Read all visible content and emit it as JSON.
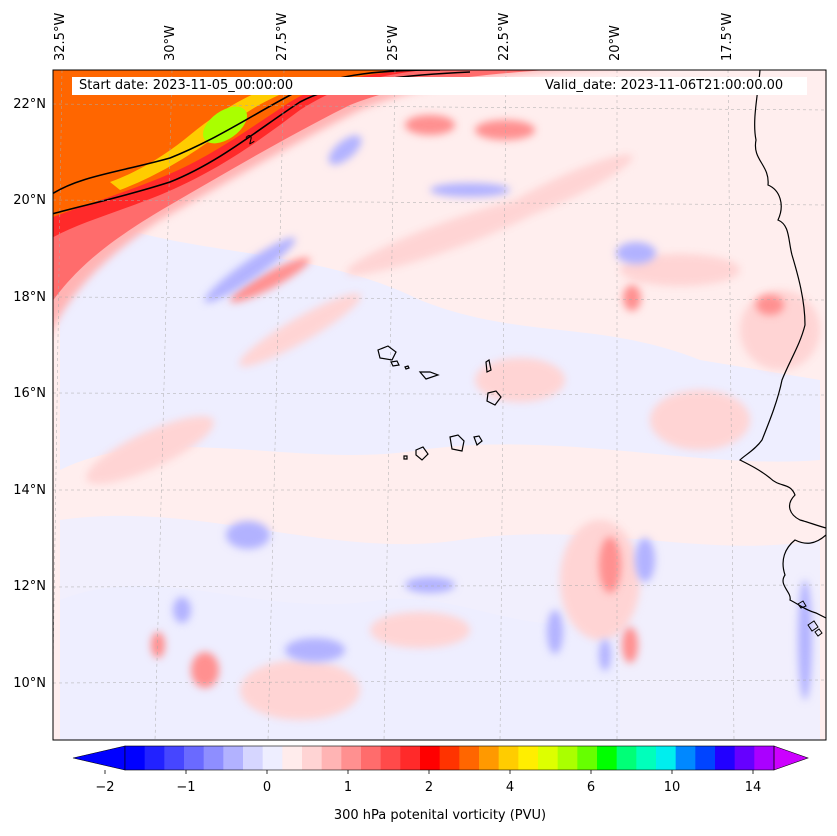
{
  "map": {
    "region": "Eastern tropical North Atlantic / Cape Verde",
    "longitude_labels": [
      "32.5°W",
      "30°W",
      "27.5°W",
      "25°W",
      "22.5°W",
      "20°W",
      "17.5°W"
    ],
    "latitude_labels": [
      "22°N",
      "20°N",
      "18°N",
      "16°N",
      "14°N",
      "12°N",
      "10°N"
    ],
    "start_date_text": "Start date: 2023-11-05_00:00:00",
    "valid_date_text": "Valid_date: 2023-11-06T21:00:00.00",
    "contour_label": "2",
    "colors": {
      "coast": "#000000",
      "background_near_zero": "#eeeeff",
      "jet_core": "#ff2a2a"
    }
  },
  "colorbar": {
    "label": "300 hPa potenital vorticity (PVU)",
    "tick_labels": [
      "−2",
      "−1",
      "0",
      "1",
      "2",
      "4",
      "6",
      "10",
      "14"
    ],
    "levels": [
      -2,
      -1.75,
      -1.5,
      -1.25,
      -1,
      -0.75,
      -0.5,
      -0.25,
      0,
      0.25,
      0.5,
      0.75,
      1,
      1.25,
      1.5,
      1.75,
      2,
      2.5,
      3,
      3.5,
      4,
      4.5,
      5,
      5.5,
      6,
      7,
      8,
      9,
      10,
      11,
      12,
      13,
      14,
      15
    ],
    "colors": [
      "#0000ff",
      "#2222ff",
      "#4646ff",
      "#6a6aff",
      "#8e8eff",
      "#b2b2ff",
      "#d6d6ff",
      "#eeeeff",
      "#ffecec",
      "#ffd4d4",
      "#ffb4b4",
      "#ff9090",
      "#ff6c6c",
      "#ff4a4a",
      "#ff2a2a",
      "#ff0000",
      "#ff3300",
      "#ff6600",
      "#ff9900",
      "#ffcc00",
      "#ffee00",
      "#ddff00",
      "#aaff00",
      "#66ff00",
      "#00ff00",
      "#00ff77",
      "#00ffbb",
      "#00eeee",
      "#0088ff",
      "#0044ff",
      "#2200ff",
      "#6600ff",
      "#aa00ff"
    ],
    "extend_low_color": "#0000ff",
    "extend_high_color": "#cc00ff"
  }
}
